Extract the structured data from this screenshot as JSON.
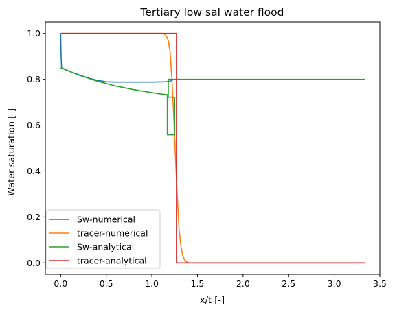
{
  "chart_data": {
    "type": "line",
    "title": "Tertiary low sal water flood",
    "xlabel": "x/t [-]",
    "ylabel": "Water saturation [-]",
    "xlim": [
      -0.168,
      3.5
    ],
    "ylim": [
      -0.05,
      1.05
    ],
    "xticks": [
      "0.0",
      "0.5",
      "1.0",
      "1.5",
      "2.0",
      "2.5",
      "3.0",
      "3.5"
    ],
    "xtick_values": [
      0.0,
      0.5,
      1.0,
      1.5,
      2.0,
      2.5,
      3.0,
      3.5
    ],
    "yticks": [
      "0.0",
      "0.2",
      "0.4",
      "0.6",
      "0.8",
      "1.0"
    ],
    "ytick_values": [
      0.0,
      0.2,
      0.4,
      0.6,
      0.8,
      1.0
    ],
    "grid": false,
    "legend_position": "lower-left",
    "series": [
      {
        "name": "Sw-numerical",
        "color": "#1f77b4",
        "x": [
          0.0,
          0.005,
          0.01,
          0.1,
          0.2,
          0.3,
          0.4,
          0.5,
          0.6,
          0.8,
          1.0,
          1.15,
          1.2,
          1.22,
          1.24,
          1.26,
          1.28,
          1.3
        ],
        "y": [
          1.0,
          0.9,
          0.85,
          0.834,
          0.82,
          0.806,
          0.796,
          0.789,
          0.788,
          0.788,
          0.788,
          0.789,
          0.792,
          0.796,
          0.799,
          0.8,
          0.8,
          0.8
        ]
      },
      {
        "name": "tracer-numerical",
        "color": "#ff7f0e",
        "x": [
          0.0,
          1.1,
          1.15,
          1.18,
          1.2,
          1.22,
          1.24,
          1.26,
          1.28,
          1.3,
          1.32,
          1.34,
          1.36,
          1.38,
          1.4,
          1.45,
          3.34
        ],
        "y": [
          1.0,
          1.0,
          0.995,
          0.97,
          0.92,
          0.8,
          0.64,
          0.45,
          0.28,
          0.14,
          0.07,
          0.03,
          0.012,
          0.005,
          0.0,
          0.0,
          0.0
        ]
      },
      {
        "name": "Sw-analytical",
        "color": "#2ca02c",
        "x": [
          0.0,
          0.2,
          0.4,
          0.6,
          0.8,
          1.0,
          1.1,
          1.17,
          1.17,
          1.25,
          1.25,
          1.18,
          1.18,
          1.25,
          3.34
        ],
        "y": [
          0.85,
          0.818,
          0.792,
          0.771,
          0.755,
          0.742,
          0.736,
          0.733,
          0.558,
          0.558,
          0.722,
          0.722,
          0.8,
          0.8,
          0.8
        ]
      },
      {
        "name": "tracer-analytical",
        "color": "#d62728",
        "x": [
          0.0,
          1.27,
          1.27,
          3.34
        ],
        "y": [
          1.0,
          1.0,
          0.0,
          0.0
        ]
      }
    ]
  }
}
